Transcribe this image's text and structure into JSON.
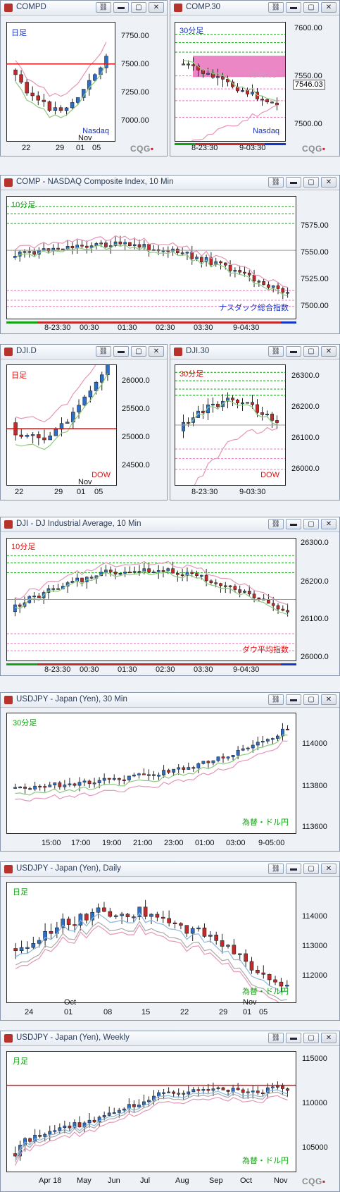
{
  "colors": {
    "up": "#2b6fc9",
    "down": "#c42a2a",
    "green": "#11a311",
    "red": "#dd1111",
    "pink": "#ea7ac0",
    "ma_green": "#8fc97f",
    "ma_pink": "#e596b9",
    "ma_blue": "#8cb7dc"
  },
  "windows": [
    {
      "id": "w1",
      "title": "COMPD",
      "period": "日足",
      "instrument": "Nasdaq",
      "y_labels": [
        "7750.00",
        "7500.00",
        "7250.00",
        "7000.00"
      ],
      "x_labels": [
        "22",
        "29",
        "01",
        "05"
      ],
      "x_top_label": "Nov",
      "logo": "CQG"
    },
    {
      "id": "w2",
      "title": "COMP.30",
      "period": "30分足",
      "instrument": "Nasdaq",
      "y_labels": [
        "7600.00",
        "7550.00",
        "7500.00"
      ],
      "x_labels": [
        "8-23:30",
        "9-03:30"
      ],
      "price_box": "7546.03",
      "ghost_price": "7546.03",
      "logo": "CQG"
    },
    {
      "id": "w3",
      "title": "COMP - NASDAQ Composite Index, 10 Min",
      "period": "10分足",
      "instrument": "ナスダック総合指数",
      "y_labels": [
        "7575.00",
        "7550.00",
        "7525.00",
        "7500.00"
      ],
      "x_labels": [
        "8-23:30",
        "00:30",
        "01:30",
        "02:30",
        "03:30",
        "9-04:30"
      ]
    },
    {
      "id": "w4",
      "title": "DJI.D",
      "period": "日足",
      "instrument": "DOW",
      "y_labels": [
        "26000.0",
        "25500.0",
        "25000.0",
        "24500.0"
      ],
      "x_labels": [
        "22",
        "29",
        "01",
        "05"
      ],
      "x_top_label": "Nov"
    },
    {
      "id": "w5",
      "title": "DJI.30",
      "period": "30分足",
      "instrument": "DOW",
      "y_labels": [
        "26300.0",
        "26200.0",
        "26100.0",
        "26000.0"
      ],
      "x_labels": [
        "8-23:30",
        "9-03:30"
      ]
    },
    {
      "id": "w6",
      "title": "DJI - DJ Industrial Average, 10 Min",
      "period": "10分足",
      "instrument": "ダウ平均指数",
      "y_labels": [
        "26300.0",
        "26200.0",
        "26100.0",
        "26000.0"
      ],
      "x_labels": [
        "8-23:30",
        "00:30",
        "01:30",
        "02:30",
        "03:30",
        "9-04:30"
      ]
    },
    {
      "id": "w7",
      "title": "USDJPY - Japan (Yen), 30 Min",
      "period": "30分足",
      "instrument": "為替・ドル円",
      "y_labels": [
        "114000",
        "113800",
        "113600"
      ],
      "x_labels": [
        "15:00",
        "17:00",
        "19:00",
        "21:00",
        "23:00",
        "01:00",
        "03:00",
        "9-05:00"
      ]
    },
    {
      "id": "w8",
      "title": "USDJPY - Japan (Yen), Daily",
      "period": "日足",
      "instrument": "為替・ドル円",
      "y_labels": [
        "114000",
        "113000",
        "112000"
      ],
      "x_labels": [
        "24",
        "01",
        "08",
        "15",
        "22",
        "29",
        "01",
        "05"
      ],
      "x_top_labels": [
        "Oct",
        "Nov"
      ]
    },
    {
      "id": "w9",
      "title": "USDJPY - Japan (Yen), Weekly",
      "period": "月足",
      "instrument": "為替・ドル円",
      "y_labels": [
        "115000",
        "110000",
        "105000"
      ],
      "x_labels": [
        "Apr 18",
        "May",
        "Jun",
        "Jul",
        "Aug",
        "Sep",
        "Oct",
        "Nov"
      ],
      "logo": "CQG"
    }
  ]
}
